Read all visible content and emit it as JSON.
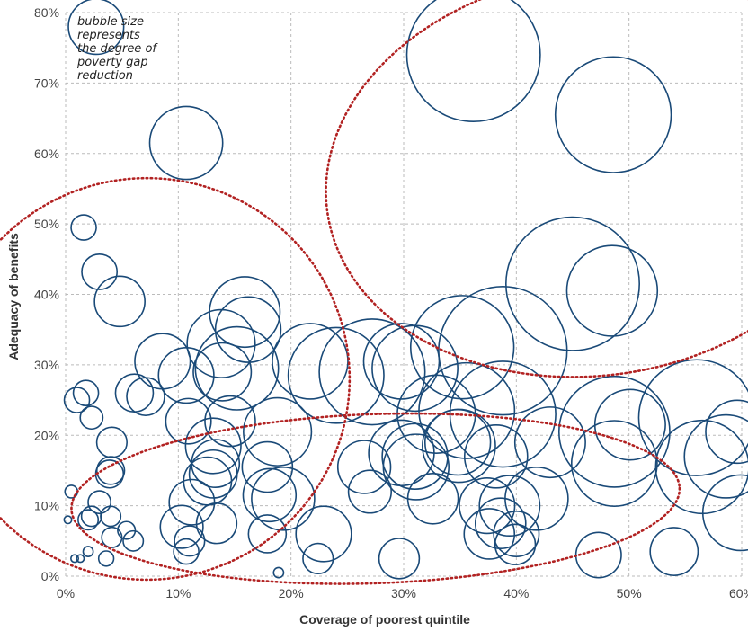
{
  "chart_data": {
    "type": "scatter",
    "subtype": "bubble",
    "xlabel": "Coverage of poorest quintile",
    "ylabel": "Adequacy of benefits",
    "xlim": [
      0,
      60
    ],
    "ylim": [
      0,
      80
    ],
    "xticks": [
      "0%",
      "10%",
      "20%",
      "30%",
      "40%",
      "50%",
      "60%"
    ],
    "yticks": [
      "0%",
      "10%",
      "20%",
      "30%",
      "40%",
      "50%",
      "60%",
      "70%",
      "80%"
    ],
    "grid": true,
    "annotation": [
      "bubble size",
      "represents",
      "the degree of",
      "poverty gap",
      "reduction"
    ],
    "colors": {
      "bubble": "#1a4a78",
      "cluster_outline": "#b22222",
      "grid": "#bbbbbb"
    },
    "points": [
      {
        "x": 2.7,
        "y": 78.0,
        "size": 2.2
      },
      {
        "x": 36.2,
        "y": 74.0,
        "size": 5.3
      },
      {
        "x": 48.6,
        "y": 65.5,
        "size": 4.6
      },
      {
        "x": 10.7,
        "y": 61.5,
        "size": 2.9
      },
      {
        "x": 1.6,
        "y": 49.5,
        "size": 1.0
      },
      {
        "x": 45.0,
        "y": 41.5,
        "size": 5.3
      },
      {
        "x": 48.5,
        "y": 40.5,
        "size": 3.6
      },
      {
        "x": 3.0,
        "y": 43.2,
        "size": 1.4
      },
      {
        "x": 4.8,
        "y": 39.0,
        "size": 2.0
      },
      {
        "x": 15.9,
        "y": 37.5,
        "size": 2.8
      },
      {
        "x": 16.2,
        "y": 35.0,
        "size": 2.6
      },
      {
        "x": 13.8,
        "y": 33.0,
        "size": 2.7
      },
      {
        "x": 8.6,
        "y": 30.5,
        "size": 2.2
      },
      {
        "x": 10.7,
        "y": 28.5,
        "size": 2.2
      },
      {
        "x": 15.2,
        "y": 29.5,
        "size": 3.3
      },
      {
        "x": 13.9,
        "y": 29.0,
        "size": 2.3
      },
      {
        "x": 21.7,
        "y": 30.5,
        "size": 3.0
      },
      {
        "x": 24.0,
        "y": 28.5,
        "size": 3.8
      },
      {
        "x": 27.2,
        "y": 29.0,
        "size": 4.2
      },
      {
        "x": 29.8,
        "y": 30.5,
        "size": 3.0
      },
      {
        "x": 31.0,
        "y": 29.5,
        "size": 3.4
      },
      {
        "x": 35.2,
        "y": 32.5,
        "size": 4.1
      },
      {
        "x": 38.8,
        "y": 32.0,
        "size": 5.1
      },
      {
        "x": 1.0,
        "y": 25.0,
        "size": 1.0
      },
      {
        "x": 1.8,
        "y": 26.0,
        "size": 1.0
      },
      {
        "x": 2.3,
        "y": 22.5,
        "size": 0.9
      },
      {
        "x": 6.1,
        "y": 26.0,
        "size": 1.5
      },
      {
        "x": 7.1,
        "y": 25.5,
        "size": 1.5
      },
      {
        "x": 10.9,
        "y": 22.0,
        "size": 1.8
      },
      {
        "x": 14.6,
        "y": 22.0,
        "size": 2.0
      },
      {
        "x": 13.1,
        "y": 18.5,
        "size": 2.2
      },
      {
        "x": 18.8,
        "y": 20.5,
        "size": 2.7
      },
      {
        "x": 32.9,
        "y": 23.0,
        "size": 3.1
      },
      {
        "x": 35.6,
        "y": 23.5,
        "size": 3.8
      },
      {
        "x": 38.8,
        "y": 23.0,
        "size": 4.2
      },
      {
        "x": 43.0,
        "y": 19.0,
        "size": 2.8
      },
      {
        "x": 48.7,
        "y": 20.5,
        "size": 4.4
      },
      {
        "x": 50.1,
        "y": 21.5,
        "size": 2.8
      },
      {
        "x": 56.0,
        "y": 22.5,
        "size": 4.6
      },
      {
        "x": 59.6,
        "y": 20.5,
        "size": 2.5
      },
      {
        "x": 58.6,
        "y": 17.0,
        "size": 3.3
      },
      {
        "x": 56.5,
        "y": 15.5,
        "size": 3.7
      },
      {
        "x": 4.1,
        "y": 19.0,
        "size": 1.2
      },
      {
        "x": 3.9,
        "y": 14.5,
        "size": 1.1
      },
      {
        "x": 4.0,
        "y": 15.0,
        "size": 1.1
      },
      {
        "x": 13.3,
        "y": 16.0,
        "size": 1.9
      },
      {
        "x": 13.1,
        "y": 14.5,
        "size": 1.9
      },
      {
        "x": 12.6,
        "y": 13.5,
        "size": 1.9
      },
      {
        "x": 17.9,
        "y": 15.5,
        "size": 2.0
      },
      {
        "x": 26.5,
        "y": 15.5,
        "size": 2.1
      },
      {
        "x": 29.8,
        "y": 17.5,
        "size": 2.6
      },
      {
        "x": 31.0,
        "y": 17.0,
        "size": 2.6
      },
      {
        "x": 31.1,
        "y": 15.5,
        "size": 2.6
      },
      {
        "x": 34.8,
        "y": 19.0,
        "size": 2.6
      },
      {
        "x": 34.9,
        "y": 18.5,
        "size": 2.9
      },
      {
        "x": 38.2,
        "y": 17.0,
        "size": 2.5
      },
      {
        "x": 48.7,
        "y": 16.0,
        "size": 3.4
      },
      {
        "x": 0.5,
        "y": 12.0,
        "size": 0.5
      },
      {
        "x": 2.3,
        "y": 8.5,
        "size": 0.8
      },
      {
        "x": 2.0,
        "y": 8.0,
        "size": 0.8
      },
      {
        "x": 3.0,
        "y": 10.5,
        "size": 0.9
      },
      {
        "x": 4.0,
        "y": 8.5,
        "size": 0.8
      },
      {
        "x": 4.1,
        "y": 5.5,
        "size": 0.8
      },
      {
        "x": 5.4,
        "y": 6.5,
        "size": 0.7
      },
      {
        "x": 6.0,
        "y": 5.0,
        "size": 0.8
      },
      {
        "x": 11.2,
        "y": 10.5,
        "size": 1.8
      },
      {
        "x": 10.3,
        "y": 7.0,
        "size": 1.7
      },
      {
        "x": 11.0,
        "y": 5.0,
        "size": 1.2
      },
      {
        "x": 10.7,
        "y": 3.5,
        "size": 1.0
      },
      {
        "x": 13.4,
        "y": 7.5,
        "size": 1.6
      },
      {
        "x": 17.9,
        "y": 6.0,
        "size": 1.5
      },
      {
        "x": 18.1,
        "y": 11.5,
        "size": 2.1
      },
      {
        "x": 19.3,
        "y": 11.0,
        "size": 2.5
      },
      {
        "x": 27.0,
        "y": 12.0,
        "size": 1.7
      },
      {
        "x": 32.6,
        "y": 11.0,
        "size": 2.0
      },
      {
        "x": 37.4,
        "y": 10.0,
        "size": 2.2
      },
      {
        "x": 38.6,
        "y": 7.5,
        "size": 2.0
      },
      {
        "x": 39.4,
        "y": 10.0,
        "size": 2.4
      },
      {
        "x": 41.8,
        "y": 11.0,
        "size": 2.5
      },
      {
        "x": 37.6,
        "y": 6.0,
        "size": 2.0
      },
      {
        "x": 40.0,
        "y": 6.0,
        "size": 1.8
      },
      {
        "x": 39.9,
        "y": 4.5,
        "size": 1.6
      },
      {
        "x": 0.2,
        "y": 8.0,
        "size": 0.3
      },
      {
        "x": 0.8,
        "y": 2.5,
        "size": 0.3
      },
      {
        "x": 1.3,
        "y": 2.5,
        "size": 0.3
      },
      {
        "x": 2.0,
        "y": 3.5,
        "size": 0.4
      },
      {
        "x": 3.6,
        "y": 2.5,
        "size": 0.6
      },
      {
        "x": 18.9,
        "y": 0.5,
        "size": 0.4
      },
      {
        "x": 22.4,
        "y": 2.5,
        "size": 1.2
      },
      {
        "x": 22.9,
        "y": 6.0,
        "size": 2.2
      },
      {
        "x": 29.6,
        "y": 2.5,
        "size": 1.6
      },
      {
        "x": 47.3,
        "y": 3.0,
        "size": 1.8
      },
      {
        "x": 54.0,
        "y": 3.5,
        "size": 1.9
      },
      {
        "x": 59.9,
        "y": 9.0,
        "size": 3.0
      }
    ],
    "clusters": [
      {
        "cx": 7.2,
        "cy": 28.0,
        "rx": 18,
        "ry": 28.5,
        "angle": -2
      },
      {
        "cx": 47.0,
        "cy": 57.0,
        "rx": 24,
        "ry": 28.5,
        "angle": -8
      },
      {
        "cx": 27.5,
        "cy": 11.0,
        "rx": 27,
        "ry": 12,
        "angle": -2
      }
    ]
  }
}
